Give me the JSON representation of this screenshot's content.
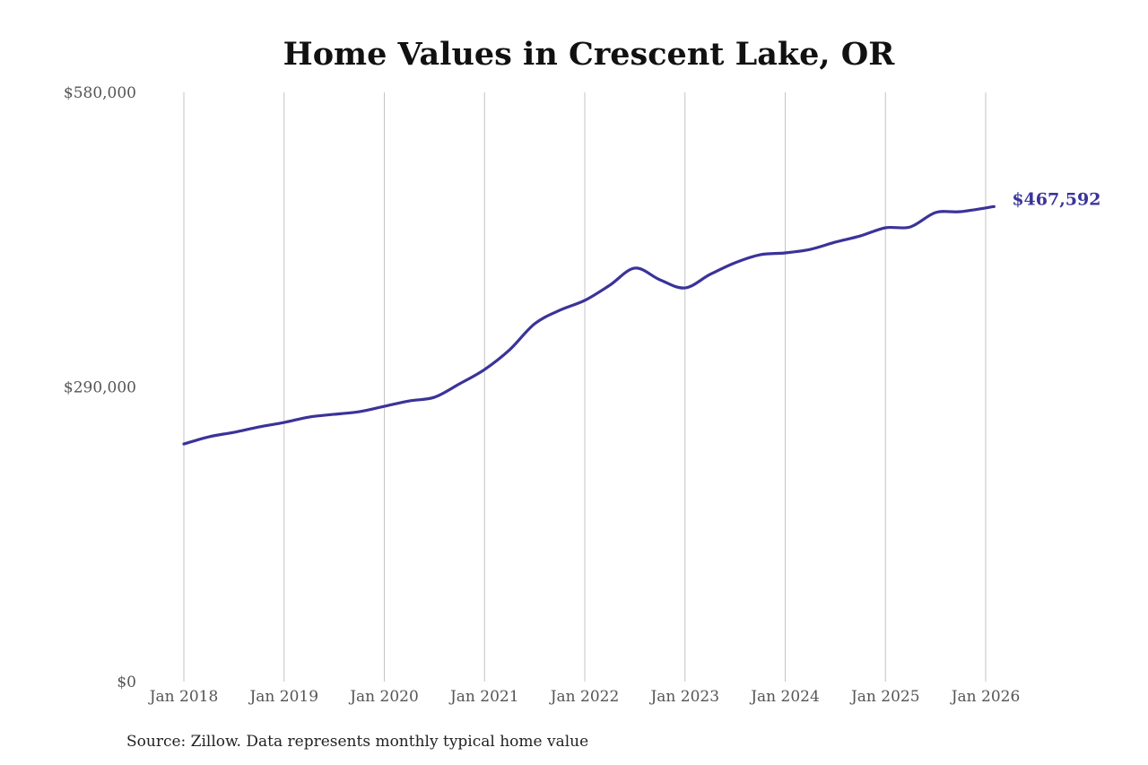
{
  "chart_data": {
    "type": "line",
    "title": "Home Values in Crescent Lake, OR",
    "source": "Source: Zillow. Data represents monthly typical home value",
    "ylim": [
      0,
      580000
    ],
    "y_ticks": [
      "$0",
      "$290,000",
      "$580,000"
    ],
    "y_tick_values": [
      0,
      290000,
      580000
    ],
    "x_ticks": [
      "Jan 2018",
      "Jan 2019",
      "Jan 2020",
      "Jan 2021",
      "Jan 2022",
      "Jan 2023",
      "Jan 2024",
      "Jan 2025",
      "Jan 2026"
    ],
    "grid": "vertical",
    "line_color": "#3a3399",
    "end_label": "$467,592",
    "series": [
      {
        "x": [
          "2018-01",
          "2018-04",
          "2018-07",
          "2018-10",
          "2019-01",
          "2019-04",
          "2019-07",
          "2019-10",
          "2020-01",
          "2020-04",
          "2020-07",
          "2020-10",
          "2021-01",
          "2021-04",
          "2021-07",
          "2021-10",
          "2022-01",
          "2022-04",
          "2022-07",
          "2022-10",
          "2023-01",
          "2023-04",
          "2023-07",
          "2023-10",
          "2024-01",
          "2024-04",
          "2024-07",
          "2024-10",
          "2025-01",
          "2025-04",
          "2025-07",
          "2025-10",
          "2026-02"
        ],
        "values": [
          233900,
          241000,
          245400,
          250700,
          255100,
          260400,
          263100,
          265700,
          271000,
          276300,
          279900,
          293100,
          307200,
          326600,
          352200,
          365500,
          375200,
          390200,
          407000,
          395500,
          387500,
          400800,
          412300,
          420200,
          422000,
          425500,
          432600,
          438700,
          446700,
          447600,
          461700,
          462600,
          467592
        ]
      }
    ]
  }
}
